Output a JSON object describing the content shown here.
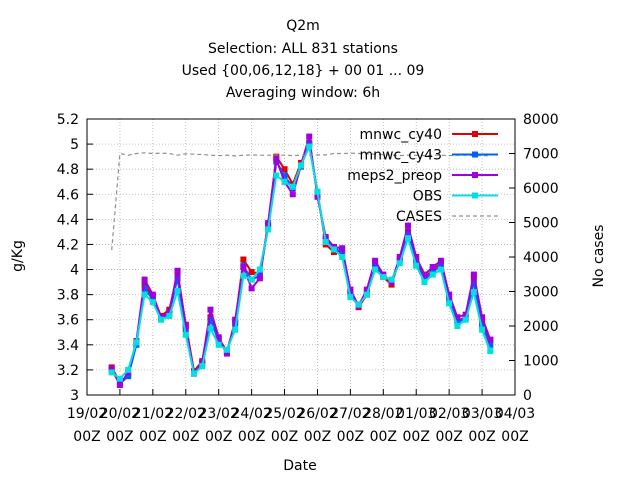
{
  "chart_data": {
    "type": "line",
    "title_lines": [
      "Q2m",
      "Selection: ALL    831 stations",
      "Used {00,06,12,18} + 00 01 ... 09",
      "Averaging window:  6h"
    ],
    "xlabel": "Date",
    "ylabel": "g/Kg",
    "y2label": "No cases",
    "ylim": [
      3.0,
      5.2
    ],
    "y2lim": [
      0,
      8000
    ],
    "yticks": [
      3,
      3.2,
      3.4,
      3.6,
      3.8,
      4,
      4.2,
      4.4,
      4.6,
      4.8,
      5,
      5.2
    ],
    "y2ticks": [
      0,
      1000,
      2000,
      3000,
      4000,
      5000,
      6000,
      7000,
      8000
    ],
    "xticks": [
      {
        "date": "19/02",
        "hour": "00Z"
      },
      {
        "date": "20/02",
        "hour": "00Z"
      },
      {
        "date": "21/02",
        "hour": "00Z"
      },
      {
        "date": "22/02",
        "hour": "00Z"
      },
      {
        "date": "23/02",
        "hour": "00Z"
      },
      {
        "date": "24/02",
        "hour": "00Z"
      },
      {
        "date": "25/02",
        "hour": "00Z"
      },
      {
        "date": "26/02",
        "hour": "00Z"
      },
      {
        "date": "27/02",
        "hour": "00Z"
      },
      {
        "date": "28/02",
        "hour": "00Z"
      },
      {
        "date": "01/03",
        "hour": "00Z"
      },
      {
        "date": "02/03",
        "hour": "00Z"
      },
      {
        "date": "03/03",
        "hour": "00Z"
      },
      {
        "date": "04/03",
        "hour": "00Z"
      }
    ],
    "time_step_hours": 6,
    "x_start": "19/02 18Z",
    "legend_position": "top-right",
    "grid": true,
    "series": [
      {
        "name": "mnwc_cy40",
        "color": "#e00000",
        "values": [
          3.22,
          3.1,
          3.16,
          3.42,
          3.88,
          3.78,
          3.63,
          3.68,
          3.96,
          3.56,
          3.19,
          3.27,
          3.62,
          3.45,
          3.35,
          3.58,
          4.08,
          3.98,
          3.97,
          4.35,
          4.9,
          4.8,
          4.68,
          4.85,
          5.0,
          4.62,
          4.2,
          4.14,
          4.15,
          3.82,
          3.7,
          3.8,
          4.05,
          3.94,
          3.88,
          4.09,
          4.3,
          4.07,
          3.93,
          4.0,
          4.05,
          3.78,
          3.59,
          3.62,
          3.94,
          3.58,
          3.44
        ]
      },
      {
        "name": "mnwc_cy43",
        "color": "#0060ff",
        "values": [
          3.2,
          3.09,
          3.15,
          3.4,
          3.85,
          3.76,
          3.61,
          3.65,
          3.93,
          3.52,
          3.18,
          3.25,
          3.6,
          3.43,
          3.34,
          3.57,
          4.03,
          3.92,
          3.95,
          4.34,
          4.86,
          4.75,
          4.65,
          4.82,
          5.01,
          4.6,
          4.24,
          4.18,
          4.13,
          3.8,
          3.72,
          3.82,
          4.03,
          3.95,
          3.9,
          4.07,
          4.28,
          4.05,
          3.92,
          3.98,
          4.03,
          3.76,
          3.58,
          3.61,
          3.9,
          3.55,
          3.4
        ]
      },
      {
        "name": "meps2_preop",
        "color": "#a000e0",
        "values": [
          3.21,
          3.08,
          3.18,
          3.43,
          3.92,
          3.8,
          3.62,
          3.66,
          3.99,
          3.55,
          3.17,
          3.26,
          3.68,
          3.46,
          3.33,
          3.6,
          4.02,
          3.85,
          3.93,
          4.37,
          4.88,
          4.7,
          4.6,
          4.83,
          5.06,
          4.58,
          4.26,
          4.18,
          4.17,
          3.84,
          3.71,
          3.84,
          4.07,
          3.96,
          3.9,
          4.1,
          4.35,
          4.1,
          3.96,
          4.02,
          4.07,
          3.8,
          3.62,
          3.64,
          3.96,
          3.62,
          3.44
        ]
      },
      {
        "name": "OBS",
        "color": "#00e0e0",
        "values": [
          3.18,
          3.13,
          3.2,
          3.42,
          3.8,
          3.74,
          3.6,
          3.63,
          3.83,
          3.48,
          3.17,
          3.23,
          3.53,
          3.4,
          3.36,
          3.52,
          3.95,
          3.92,
          4.0,
          4.32,
          4.75,
          4.7,
          4.66,
          4.83,
          4.98,
          4.62,
          4.22,
          4.16,
          4.1,
          3.78,
          3.72,
          3.8,
          4.0,
          3.94,
          3.92,
          4.05,
          4.25,
          4.03,
          3.9,
          3.96,
          4.0,
          3.73,
          3.55,
          3.6,
          3.82,
          3.52,
          3.35
        ]
      },
      {
        "name": "CASES",
        "color": "#909090",
        "axis": "y2",
        "dashed": true,
        "values": [
          4200,
          7000,
          6950,
          7000,
          7020,
          7000,
          7010,
          7000,
          6950,
          6990,
          6980,
          6970,
          6950,
          6940,
          6950,
          6930,
          6950,
          6960,
          6950,
          6950,
          6960,
          6950,
          6940,
          6950,
          6950,
          6960,
          6960,
          7000,
          7000,
          7010,
          7000,
          6990,
          6980,
          6970,
          6950,
          6940,
          6950,
          6950,
          6940,
          6950,
          6950,
          6940,
          6950,
          6950,
          6940,
          6940,
          6930
        ]
      }
    ]
  }
}
